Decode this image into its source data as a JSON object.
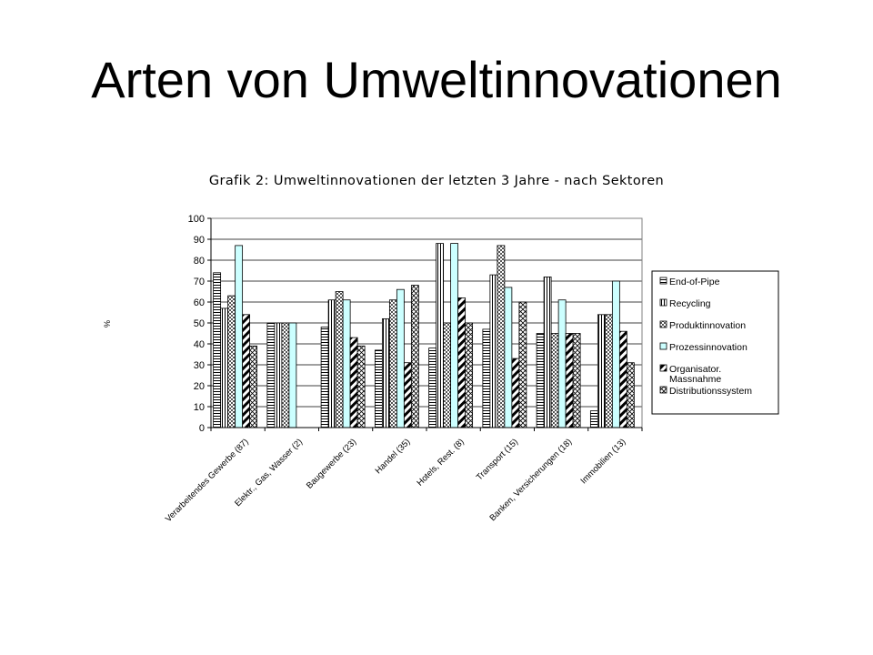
{
  "slide": {
    "title": "Arten von Umweltinnovationen"
  },
  "chart_data": {
    "type": "bar",
    "title": "Grafik 2: Umweltinnovationen der letzten 3 Jahre - nach Sektoren",
    "xlabel": "",
    "ylabel": "%",
    "ylim": [
      0,
      100
    ],
    "yticks": [
      0,
      10,
      20,
      30,
      40,
      50,
      60,
      70,
      80,
      90,
      100
    ],
    "grid": true,
    "legend": "right",
    "categories": [
      "Verarbeitendes Gewerbe (87)",
      "Elektr., Gas, Wasser (2)",
      "Baugewerbe (23)",
      "Handel (35)",
      "Hotels, Rest. (8)",
      "Transport (15)",
      "Banken, Versicherungen (18)",
      "Immobilien (13)"
    ],
    "series": [
      {
        "name": "End-of-Pipe",
        "pattern": "hlines",
        "fill": "#ffffff",
        "values": [
          74,
          50,
          48,
          37,
          38,
          47,
          45,
          8
        ]
      },
      {
        "name": "Recycling",
        "pattern": "vlines",
        "fill": "#ffffff",
        "values": [
          57,
          50,
          61,
          52,
          88,
          73,
          72,
          54
        ]
      },
      {
        "name": "Produktinnovation",
        "pattern": "checker",
        "fill": "#ffffff",
        "values": [
          63,
          50,
          65,
          61,
          50,
          87,
          45,
          54
        ]
      },
      {
        "name": "Prozessinnovation",
        "pattern": "cyan",
        "fill": "#ccffff",
        "values": [
          87,
          50,
          61,
          66,
          88,
          67,
          61,
          70
        ]
      },
      {
        "name": "Organisator. Massnahme",
        "pattern": "thick-diag",
        "fill": "#ffffff",
        "values": [
          54,
          0,
          43,
          31,
          62,
          33,
          45,
          46
        ]
      },
      {
        "name": "Distributionssystem",
        "pattern": "cross-diag",
        "fill": "#ffffff",
        "values": [
          39,
          0,
          39,
          68,
          50,
          60,
          45,
          31
        ]
      }
    ]
  }
}
